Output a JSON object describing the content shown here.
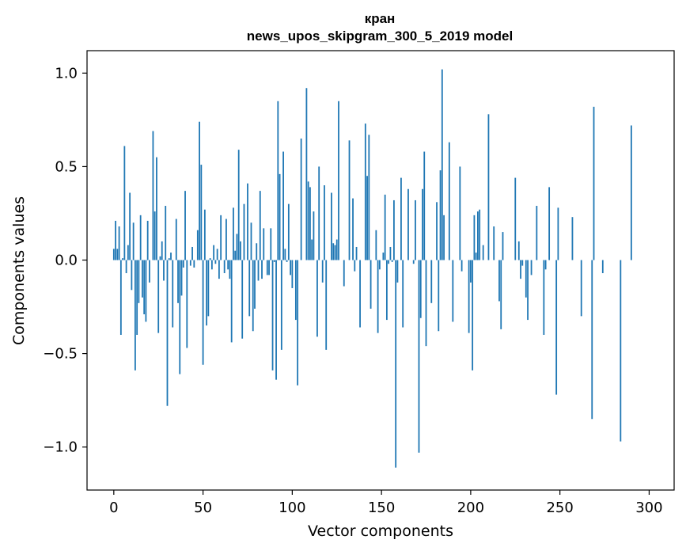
{
  "chart_data": {
    "type": "bar",
    "title_line1": "кран",
    "title_line2": "news_upos_skipgram_300_5_2019 model",
    "xlabel": "Vector components",
    "ylabel": "Components values",
    "xlim": [
      -15,
      314
    ],
    "ylim": [
      -1.23,
      1.12
    ],
    "xticks": [
      0,
      50,
      100,
      150,
      200,
      250,
      300
    ],
    "xtick_labels": [
      "0",
      "50",
      "100",
      "150",
      "200",
      "250",
      "300"
    ],
    "yticks": [
      -1.0,
      -0.5,
      0.0,
      0.5,
      1.0
    ],
    "ytick_labels": [
      "−1.0",
      "−0.5",
      "0.0",
      "0.5",
      "1.0"
    ],
    "grid": false,
    "bar_color": "#1f77b4",
    "series": [
      {
        "values": [
          0.06,
          0.21,
          0.06,
          0.18,
          -0.4,
          0.01,
          0.61,
          -0.07,
          0.08,
          0.36,
          -0.16,
          0.2,
          -0.59,
          -0.4,
          -0.23,
          0.24,
          -0.2,
          -0.29,
          -0.33,
          0.21,
          -0.12,
          0.0,
          0.69,
          0.26,
          0.55,
          -0.39,
          0.02,
          0.1,
          -0.11,
          0.29,
          -0.78,
          0.01,
          0.04,
          -0.36,
          0.0,
          0.22,
          -0.23,
          -0.61,
          -0.19,
          -0.04,
          0.37,
          -0.47,
          0.0,
          -0.03,
          0.07,
          -0.04,
          0.0,
          0.16,
          0.74,
          0.51,
          -0.56,
          0.27,
          -0.35,
          -0.3,
          0.01,
          -0.05,
          0.08,
          -0.02,
          0.06,
          -0.1,
          0.24,
          0.0,
          -0.07,
          0.22,
          -0.05,
          -0.1,
          -0.44,
          0.28,
          0.05,
          0.14,
          0.59,
          0.1,
          -0.42,
          0.3,
          0.0,
          0.41,
          -0.3,
          0.2,
          -0.38,
          -0.26,
          0.09,
          -0.11,
          0.37,
          -0.1,
          0.17,
          0.0,
          -0.08,
          -0.08,
          0.17,
          -0.59,
          -0.01,
          -0.64,
          0.85,
          0.46,
          -0.48,
          0.58,
          0.06,
          -0.01,
          0.3,
          -0.08,
          -0.15,
          0.0,
          -0.32,
          -0.67,
          0.0,
          0.65,
          0.0,
          0.0,
          0.92,
          0.42,
          0.39,
          0.11,
          0.26,
          0.0,
          -0.41,
          0.5,
          0.0,
          -0.12,
          0.4,
          -0.48,
          0.0,
          0.0,
          0.36,
          0.09,
          0.08,
          0.11,
          0.85,
          0.0,
          0.0,
          -0.14,
          0.0,
          0.0,
          0.64,
          0.0,
          0.33,
          -0.06,
          0.07,
          0.0,
          -0.36,
          0.0,
          0.0,
          0.73,
          0.45,
          0.67,
          -0.26,
          0.0,
          0.0,
          0.16,
          -0.39,
          -0.05,
          0.0,
          0.04,
          0.35,
          -0.32,
          -0.02,
          0.07,
          -0.01,
          0.32,
          -1.11,
          -0.12,
          0.0,
          0.44,
          -0.36,
          0.0,
          0.0,
          0.38,
          0.0,
          0.0,
          -0.02,
          0.32,
          0.0,
          -1.03,
          -0.31,
          0.38,
          0.58,
          -0.46,
          0.0,
          0.0,
          -0.23,
          0.0,
          0.0,
          0.31,
          -0.38,
          0.48,
          1.02,
          0.24,
          0.0,
          0.0,
          0.63,
          0.0,
          -0.33,
          0.0,
          0.0,
          0.0,
          0.5,
          -0.06,
          0.0,
          0.0,
          0.0,
          -0.39,
          -0.12,
          -0.59,
          0.24,
          0.04,
          0.26,
          0.27,
          0.0,
          0.08,
          0.0,
          0.0,
          0.78,
          0.0,
          0.0,
          0.18,
          0.0,
          0.0,
          -0.22,
          -0.37,
          0.15,
          0.0,
          0.0,
          0.0,
          0.0,
          0.0,
          0.0,
          0.44,
          0.0,
          0.1,
          -0.1,
          -0.03,
          0.0,
          -0.2,
          -0.32,
          0.0,
          -0.08,
          0.0,
          0.0,
          0.29,
          0.0,
          0.0,
          0.0,
          -0.4,
          -0.05,
          0.0,
          0.39,
          0.0,
          0.0,
          0.0,
          -0.72,
          0.28,
          0.0,
          0.0,
          0.0,
          0.0,
          0.0,
          0.0,
          0.0,
          0.23,
          0.0,
          0.0,
          0.0,
          0.0,
          -0.3,
          0.0,
          0.0,
          0.0,
          0.0,
          0.0,
          -0.85,
          0.82,
          0.0,
          0.0,
          0.0,
          0.0,
          -0.07,
          0.0,
          0.0,
          0.0,
          0.0,
          0.0,
          0.0,
          0.0,
          0.0,
          0.0,
          -0.97,
          0.0,
          0.0,
          0.0,
          0.0,
          0.0,
          0.72,
          0.0,
          0.0,
          0.0,
          0.0,
          0.0,
          0.0,
          0.0,
          0.0,
          0.0,
          0.0,
          0.0,
          0.0,
          0.0,
          0.0,
          0.0,
          0.0,
          0.0,
          0.0,
          0.0,
          0.0,
          0.0
        ]
      }
    ]
  }
}
